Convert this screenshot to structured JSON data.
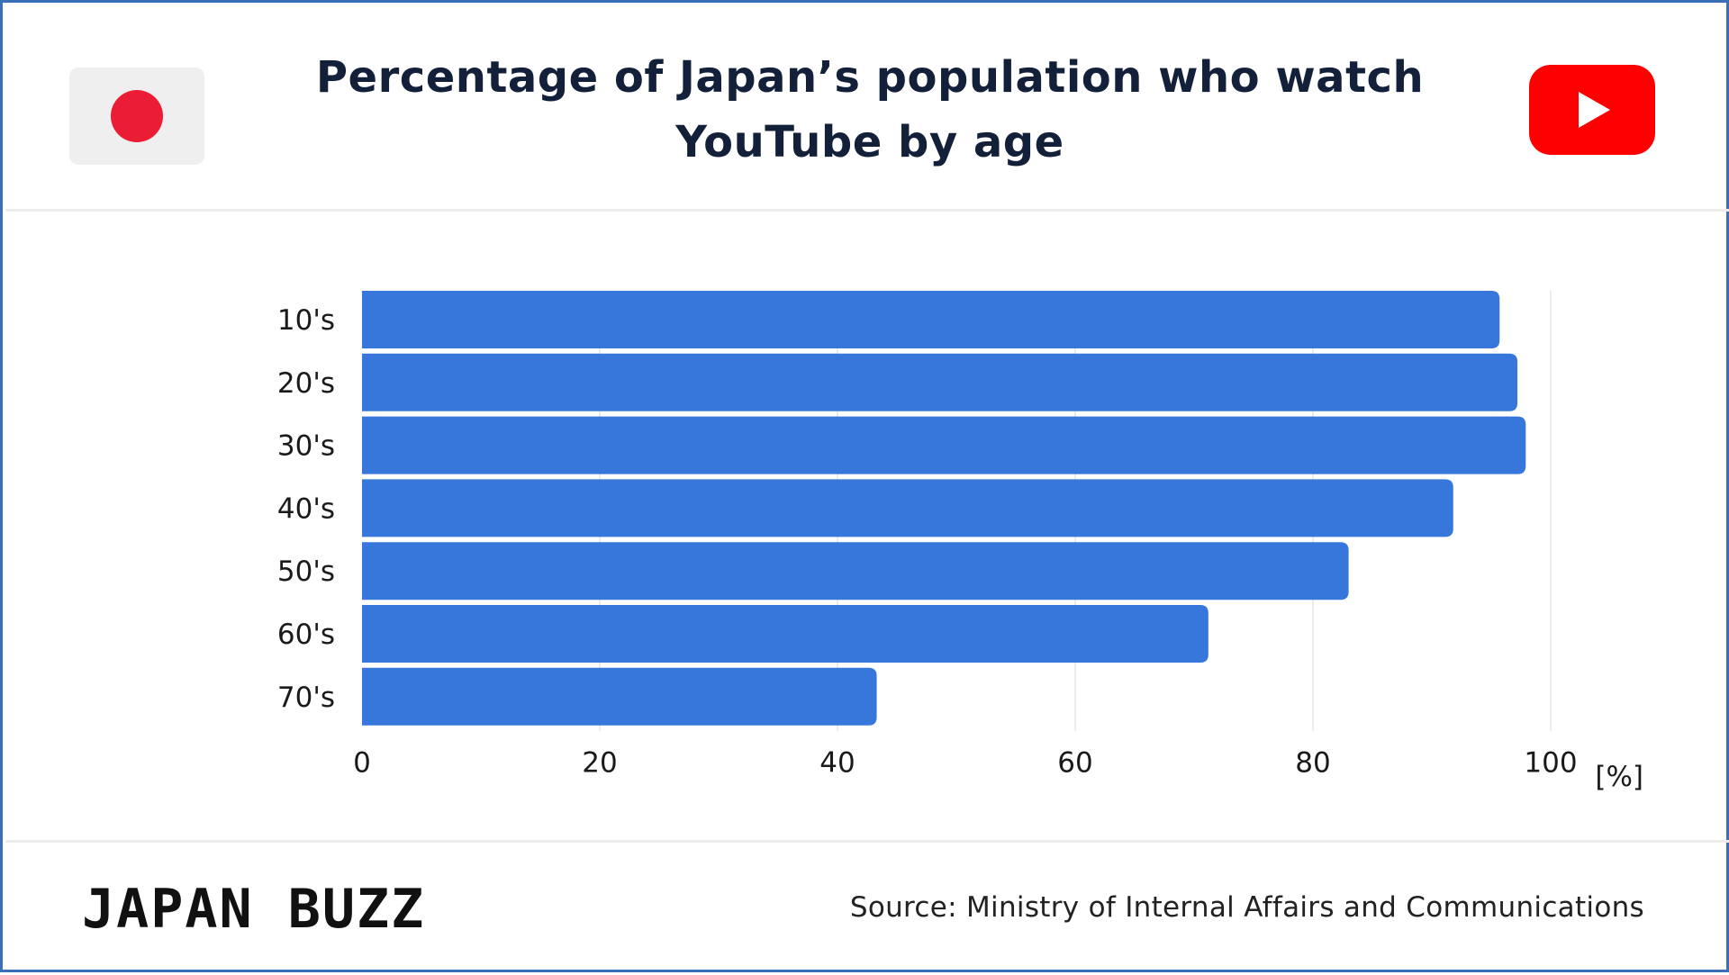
{
  "header": {
    "title_line1": "Percentage of Japan’s population who watch",
    "title_line2": "YouTube by age",
    "flag_icon": "japan-flag-icon",
    "brand_icon": "youtube-logo-icon"
  },
  "colors": {
    "bar": "#3777dc",
    "flag_red": "#ea1d35",
    "youtube_red": "#fe0000",
    "frame": "#3a6fb8"
  },
  "chart_data": {
    "type": "bar",
    "orientation": "horizontal",
    "title": "Percentage of Japan’s population who watch YouTube by age",
    "categories": [
      "10's",
      "20's",
      "30's",
      "40's",
      "50's",
      "60's",
      "70's"
    ],
    "values": [
      95.7,
      97.2,
      97.9,
      91.8,
      83.0,
      71.2,
      43.3
    ],
    "xticks": [
      "0",
      "20",
      "40",
      "60",
      "80",
      "100"
    ],
    "xlim": [
      0,
      100
    ],
    "xunit": "[%]",
    "grid": true
  },
  "footer": {
    "logo": "JAPAN BUZZ",
    "source": "Source: Ministry of Internal Affairs and Communications"
  }
}
